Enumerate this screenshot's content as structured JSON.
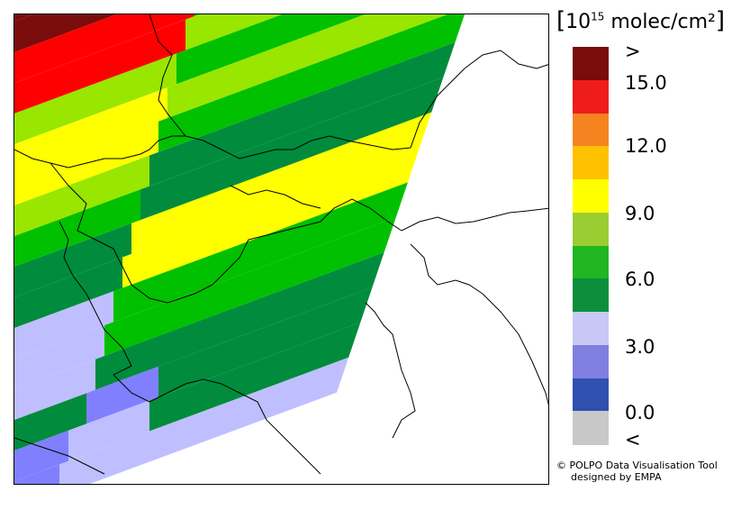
{
  "legend": {
    "unit_base": "10",
    "unit_exp": "15",
    "unit_rest": " molec/cm²",
    "open_bracket": "[",
    "close_bracket": "]",
    "colors": [
      "#7a0c0c",
      "#ee1c1c",
      "#f5831f",
      "#ffc000",
      "#ffff00",
      "#9acd32",
      "#22b522",
      "#0b8f3c",
      "#c8c8f5",
      "#7f7fdf",
      "#3050b0",
      "#c8c8c8"
    ],
    "tick_labels": [
      ">",
      "15.0",
      "12.0",
      "9.0",
      "6.0",
      "3.0",
      "0.0",
      "<"
    ]
  },
  "credit": {
    "line1": "© POLPO Data Visualisation Tool",
    "line2": "designed by EMPA"
  },
  "map": {
    "colors": {
      "darkred": "#7a0c0c",
      "red": "#ff0000",
      "orange": "#ffbf00",
      "yellow": "#ffff00",
      "lightgreen": "#99e600",
      "green": "#00c000",
      "darkgreen": "#008c3c",
      "lavender": "#bfbfff",
      "blue": "#8080ff",
      "border": "#000000"
    }
  }
}
